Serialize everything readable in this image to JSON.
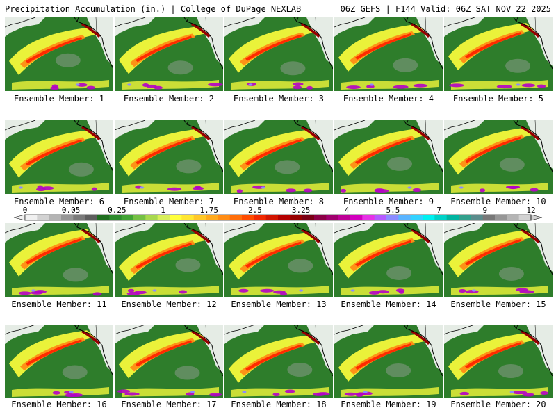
{
  "header": {
    "title": "Precipitation Accumulation (in.) | College of DuPage NEXLAB",
    "run_info": "06Z GEFS | F144 Valid: 06Z SAT NOV 22 2025"
  },
  "panels": [
    {
      "label": "Ensemble Member: 1"
    },
    {
      "label": "Ensemble Member: 2"
    },
    {
      "label": "Ensemble Member: 3"
    },
    {
      "label": "Ensemble Member: 4"
    },
    {
      "label": "Ensemble Member: 5"
    },
    {
      "label": "Ensemble Member: 6"
    },
    {
      "label": "Ensemble Member: 7"
    },
    {
      "label": "Ensemble Member: 8"
    },
    {
      "label": "Ensemble Member: 9"
    },
    {
      "label": "Ensemble Member: 10"
    },
    {
      "label": "Ensemble Member: 11"
    },
    {
      "label": "Ensemble Member: 12"
    },
    {
      "label": "Ensemble Member: 13"
    },
    {
      "label": "Ensemble Member: 14"
    },
    {
      "label": "Ensemble Member: 15"
    },
    {
      "label": "Ensemble Member: 16"
    },
    {
      "label": "Ensemble Member: 17"
    },
    {
      "label": "Ensemble Member: 18"
    },
    {
      "label": "Ensemble Member: 19"
    },
    {
      "label": "Ensemble Member: 20"
    }
  ],
  "colorbar": {
    "unit": "in.",
    "tick_labels": [
      "0",
      "0.05",
      "0.25",
      "1",
      "1.75",
      "2.5",
      "3.25",
      "4",
      "5.5",
      "7",
      "9",
      "12"
    ],
    "colors": [
      "#f0f0f0",
      "#d2d2d2",
      "#b4b4b4",
      "#969696",
      "#7a7a7a",
      "#5e5e5e",
      "#1f6e1f",
      "#2e8b2e",
      "#41a334",
      "#74c044",
      "#a8d84e",
      "#d8ef5a",
      "#ffff3c",
      "#ffe632",
      "#ffc828",
      "#ffaa1e",
      "#ff8c14",
      "#ff6e0a",
      "#ff4b00",
      "#f02800",
      "#d21400",
      "#b40000",
      "#960000",
      "#7a0014",
      "#8c0046",
      "#a0006e",
      "#be0096",
      "#d200be",
      "#e632e6",
      "#b45aff",
      "#8c8cff",
      "#5ab4ff",
      "#32d2ff",
      "#00f0f0",
      "#00d2c8",
      "#00b4a0",
      "#32a08c",
      "#5a8c8c",
      "#787878",
      "#969696",
      "#b4b4b4",
      "#d2d2d2"
    ]
  },
  "palette": {
    "no_precip": "#f5f5f5",
    "low": "#2e7d2b",
    "moderate": "#ffff3c",
    "heavy": "#ff2a00",
    "extreme": "#b400c8",
    "coast": "#000000"
  }
}
